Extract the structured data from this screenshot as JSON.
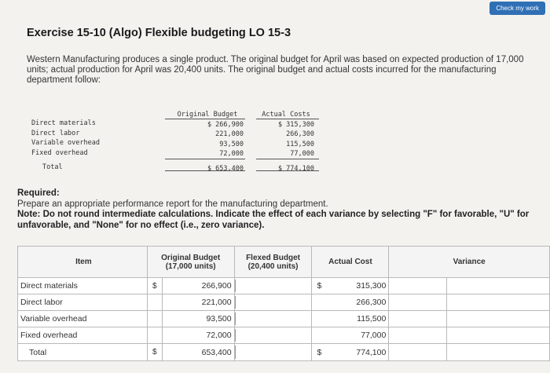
{
  "header": {
    "check_label": "Check my work"
  },
  "title": "Exercise 15-10 (Algo) Flexible budgeting LO 15-3",
  "intro": "Western Manufacturing produces a single product. The original budget for April was based on expected production of 17,000 units; actual production for April was 20,400 units. The original budget and actual costs incurred for the manufacturing department follow:",
  "given": {
    "labels": [
      "Direct materials",
      "Direct labor",
      "Variable overhead",
      "Fixed overhead"
    ],
    "total_label": "Total",
    "original": {
      "header": "Original Budget",
      "values": [
        "$ 266,900",
        "221,000",
        "93,500",
        "72,000"
      ],
      "total": "$ 653,400"
    },
    "actual": {
      "header": "Actual Costs",
      "values": [
        "$ 315,300",
        "266,300",
        "115,500",
        "77,000"
      ],
      "total": "$ 774,100"
    }
  },
  "required": {
    "heading": "Required:",
    "text": "Prepare an appropriate performance report for the manufacturing department.",
    "note": "Note: Do not round intermediate calculations. Indicate the effect of each variance by selecting \"F\" for favorable, \"U\" for unfavorable, and \"None\" for no effect (i.e., zero variance)."
  },
  "report": {
    "headers": {
      "item": "Item",
      "original": "Original Budget (17,000 units)",
      "flexed": "Flexed Budget (20,400 units)",
      "actual": "Actual Cost",
      "variance": "Variance"
    },
    "rows": [
      {
        "item": "Direct materials",
        "orig_sym": "$",
        "original": "266,900",
        "act_sym": "$",
        "actual": "315,300"
      },
      {
        "item": "Direct labor",
        "orig_sym": "",
        "original": "221,000",
        "act_sym": "",
        "actual": "266,300"
      },
      {
        "item": "Variable overhead",
        "orig_sym": "",
        "original": "93,500",
        "act_sym": "",
        "actual": "115,500"
      },
      {
        "item": "Fixed overhead",
        "orig_sym": "",
        "original": "72,000",
        "act_sym": "",
        "actual": "77,000"
      },
      {
        "item": "Total",
        "orig_sym": "$",
        "original": "653,400",
        "act_sym": "$",
        "actual": "774,100"
      }
    ]
  }
}
